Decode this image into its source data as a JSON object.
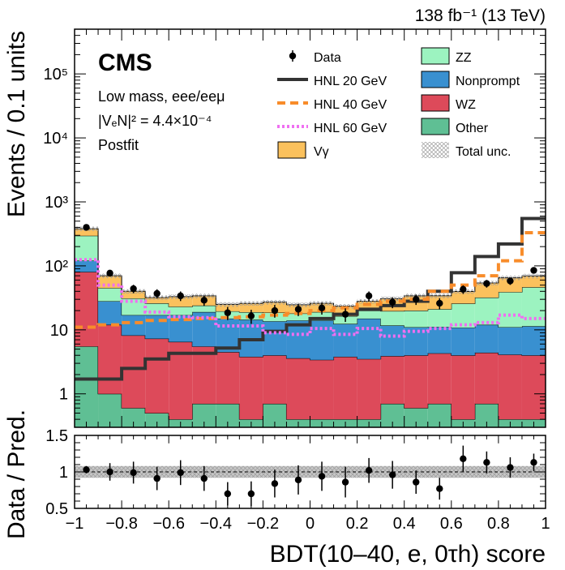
{
  "chart_data": {
    "type": "bar",
    "subtype": "stacked-histogram-with-ratio",
    "lumi_label": "138 fb⁻¹ (13 TeV)",
    "experiment": "CMS",
    "annotations": [
      "Low mass, eee/eeμ",
      "|VₑN|² = 4.4×10⁻⁴",
      "Postfit"
    ],
    "xlabel": "BDT(10–40, e, 0τh) score",
    "ylabel": "Events / 0.1 units",
    "ratio_ylabel": "Data / Pred.",
    "xlim": [
      -1,
      1
    ],
    "ylim": [
      0.3,
      500000
    ],
    "yscale": "log",
    "ratio_ylim": [
      0.5,
      1.5
    ],
    "x_ticks": [
      "−1",
      "−0.8",
      "−0.6",
      "−0.4",
      "−0.2",
      "0",
      "0.2",
      "0.4",
      "0.6",
      "0.8",
      "1"
    ],
    "y_ticks": [
      {
        "value": 1,
        "label": "1"
      },
      {
        "value": 10,
        "label": "10"
      },
      {
        "value": 100,
        "label": "10²"
      },
      {
        "value": 1000,
        "label": "10³"
      },
      {
        "value": 10000,
        "label": "10⁴"
      },
      {
        "value": 100000,
        "label": "10⁵"
      }
    ],
    "ratio_ticks": [
      {
        "value": 0.5,
        "label": "0.5"
      },
      {
        "value": 1,
        "label": "1"
      },
      {
        "value": 1.5,
        "label": "1.5"
      }
    ],
    "bin_edges": [
      -1.0,
      -0.9,
      -0.8,
      -0.7,
      -0.6,
      -0.5,
      -0.4,
      -0.3,
      -0.2,
      -0.1,
      0.0,
      0.1,
      0.2,
      0.3,
      0.4,
      0.5,
      0.6,
      0.7,
      0.8,
      0.9,
      1.0
    ],
    "stack": [
      {
        "name": "Other",
        "color": "#5fbf94",
        "values": [
          5.5,
          1.0,
          0.6,
          0.5,
          0.4,
          0.7,
          0.7,
          0.4,
          0.7,
          0.4,
          0.4,
          0.4,
          0.4,
          0.7,
          0.6,
          0.7,
          0.4,
          0.7,
          0.4,
          0.4
        ]
      },
      {
        "name": "WZ",
        "color": "#dd4a5a",
        "values": [
          75,
          11,
          7.6,
          6.8,
          6.1,
          4.8,
          3.8,
          3.4,
          3.3,
          3.2,
          3.0,
          3.4,
          3.1,
          3.2,
          3.4,
          3.6,
          3.6,
          3.7,
          3.7,
          3.6
        ]
      },
      {
        "name": "Nonprompt",
        "color": "#3990d0",
        "values": [
          40,
          16,
          8.8,
          9.7,
          10.5,
          13.5,
          10.5,
          10.6,
          9.6,
          10.4,
          10.6,
          8.6,
          11.5,
          7.8,
          7.0,
          6.8,
          6.8,
          7.6,
          6.9,
          7.4
        ]
      },
      {
        "name": "ZZ",
        "color": "#9cf3c0",
        "values": [
          175,
          17,
          14,
          9,
          6,
          5,
          4.5,
          4.5,
          5,
          4,
          5,
          4,
          5,
          8,
          9,
          10,
          15,
          20,
          28,
          35
        ]
      },
      {
        "name": "Vγ",
        "color": "#fbc15d",
        "values": [
          85,
          25,
          9,
          6,
          10,
          10,
          5.5,
          7,
          8.5,
          6.7,
          7,
          7,
          8,
          11,
          14,
          13,
          14,
          22,
          26,
          23
        ]
      }
    ],
    "signals": [
      {
        "name": "HNL 20 GeV",
        "color": "#333333",
        "style": "solid",
        "values": [
          1.7,
          1.7,
          2.5,
          3.5,
          4.3,
          4.3,
          5.2,
          7.0,
          9.5,
          12.0,
          15.0,
          17.5,
          21.0,
          24.0,
          28.0,
          40.0,
          78.0,
          140,
          220,
          550
        ]
      },
      {
        "name": "HNL 40 GeV",
        "color": "#f88c2a",
        "style": "dashed",
        "values": [
          11,
          12,
          13,
          14,
          14.5,
          15,
          15.5,
          16,
          17,
          18,
          20,
          22,
          25,
          28,
          30,
          40,
          50,
          70,
          120,
          330
        ]
      },
      {
        "name": "HNL 60 GeV",
        "color": "#ef6ff1",
        "style": "dotted",
        "values": [
          125,
          50,
          28,
          19,
          16,
          15.5,
          11.5,
          11.5,
          9,
          8.5,
          10.5,
          8.5,
          10.5,
          8,
          9.5,
          10.5,
          12,
          13,
          17,
          15
        ]
      }
    ],
    "data": {
      "name": "Data",
      "values": [
        400,
        77,
        44,
        37,
        34,
        29,
        18.5,
        16.5,
        20,
        21,
        22,
        17.5,
        34,
        27,
        30,
        26,
        43,
        53,
        58,
        85
      ],
      "errors": [
        20,
        9,
        6.6,
        6.1,
        5.8,
        5.4,
        4.3,
        4.1,
        4.5,
        4.6,
        4.7,
        4.2,
        5.8,
        5.2,
        5.5,
        5.1,
        6.6,
        7.3,
        7.6,
        9.2
      ]
    },
    "ratio": {
      "values": [
        1.03,
        1.0,
        0.99,
        0.91,
        0.99,
        0.91,
        0.7,
        0.7,
        0.84,
        0.89,
        0.94,
        0.86,
        1.02,
        0.96,
        0.86,
        0.77,
        1.18,
        1.13,
        1.06,
        1.13
      ],
      "errors": [
        0.05,
        0.12,
        0.15,
        0.16,
        0.17,
        0.17,
        0.16,
        0.17,
        0.19,
        0.2,
        0.2,
        0.21,
        0.17,
        0.19,
        0.16,
        0.15,
        0.18,
        0.15,
        0.14,
        0.12
      ],
      "uncertainty": 0.08
    },
    "legend": {
      "column1": [
        "Data",
        "HNL 20 GeV",
        "HNL 40 GeV",
        "HNL 60 GeV",
        "Vγ"
      ],
      "column2": [
        "ZZ",
        "Nonprompt",
        "WZ",
        "Other",
        "Total unc."
      ]
    }
  }
}
